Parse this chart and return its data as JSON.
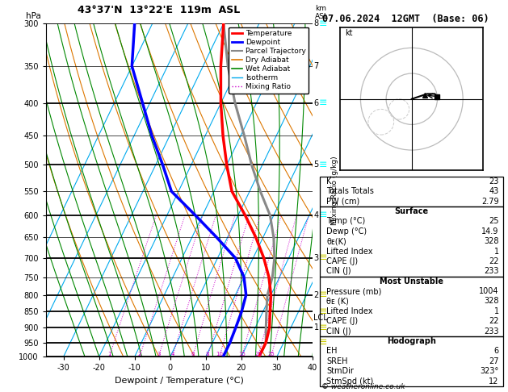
{
  "title_left": "43°37'N  13°22'E  119m  ASL",
  "title_right": "07.06.2024  12GMT  (Base: 06)",
  "xlabel": "Dewpoint / Temperature (°C)",
  "pressure_levels": [
    300,
    350,
    400,
    450,
    500,
    550,
    600,
    650,
    700,
    750,
    800,
    850,
    900,
    950,
    1000
  ],
  "pressure_bold": [
    300,
    400,
    500,
    600,
    700,
    800,
    850,
    900,
    950,
    1000
  ],
  "xlim": [
    -35,
    40
  ],
  "ylim_p": [
    1000,
    300
  ],
  "temp_profile_p": [
    300,
    350,
    400,
    450,
    500,
    550,
    600,
    650,
    700,
    750,
    800,
    850,
    900,
    950,
    1000
  ],
  "temp_profile_T": [
    -30,
    -25,
    -20,
    -15,
    -10,
    -5,
    2,
    8,
    13,
    17,
    20,
    22,
    24,
    25,
    25
  ],
  "dewp_profile_T": [
    -55,
    -50,
    -42,
    -35,
    -28,
    -22,
    -12,
    -3,
    5,
    10,
    13,
    14,
    14.5,
    14.9,
    14.9
  ],
  "parcel_profile_T": [
    -30,
    -23,
    -16,
    -9,
    -3,
    3,
    9,
    13,
    16,
    18,
    19,
    21,
    23,
    25,
    25
  ],
  "temp_color": "#ff0000",
  "dewp_color": "#0000ff",
  "parcel_color": "#888888",
  "dry_adiabat_color": "#dd7700",
  "wet_adiabat_color": "#008800",
  "isotherm_color": "#00aaee",
  "mixing_ratio_color": "#cc00cc",
  "lcl_pressure": 870,
  "mixing_ratios": [
    1,
    2,
    3,
    4,
    6,
    8,
    10,
    15,
    20,
    25
  ],
  "km_ticks": [
    8,
    7,
    6,
    5,
    4,
    3,
    2,
    1
  ],
  "km_pressures": [
    300,
    350,
    400,
    500,
    600,
    700,
    800,
    900
  ],
  "skew_factor": 45.0,
  "wind_barb_pressures_cyan": [
    300,
    400,
    500,
    600
  ],
  "wind_barb_pressures_yellow": [
    700,
    800,
    850,
    900,
    950
  ],
  "stats_sections": [
    [
      [
        "K",
        "23"
      ],
      [
        "Totals Totals",
        "43"
      ],
      [
        "PW (cm)",
        "2.79"
      ]
    ],
    [
      [
        "Surface",
        null
      ],
      [
        "Temp (°C)",
        "25"
      ],
      [
        "Dewp (°C)",
        "14.9"
      ],
      [
        "θᴇ(K)",
        "328"
      ],
      [
        "Lifted Index",
        "1"
      ],
      [
        "CAPE (J)",
        "22"
      ],
      [
        "CIN (J)",
        "233"
      ]
    ],
    [
      [
        "Most Unstable",
        null
      ],
      [
        "Pressure (mb)",
        "1004"
      ],
      [
        "θᴇ (K)",
        "328"
      ],
      [
        "Lifted Index",
        "1"
      ],
      [
        "CAPE (J)",
        "22"
      ],
      [
        "CIN (J)",
        "233"
      ]
    ],
    [
      [
        "Hodograph",
        null
      ],
      [
        "EH",
        "6"
      ],
      [
        "SREH",
        "27"
      ],
      [
        "StmDir",
        "323°"
      ],
      [
        "StmSpd (kt)",
        "12"
      ]
    ]
  ]
}
